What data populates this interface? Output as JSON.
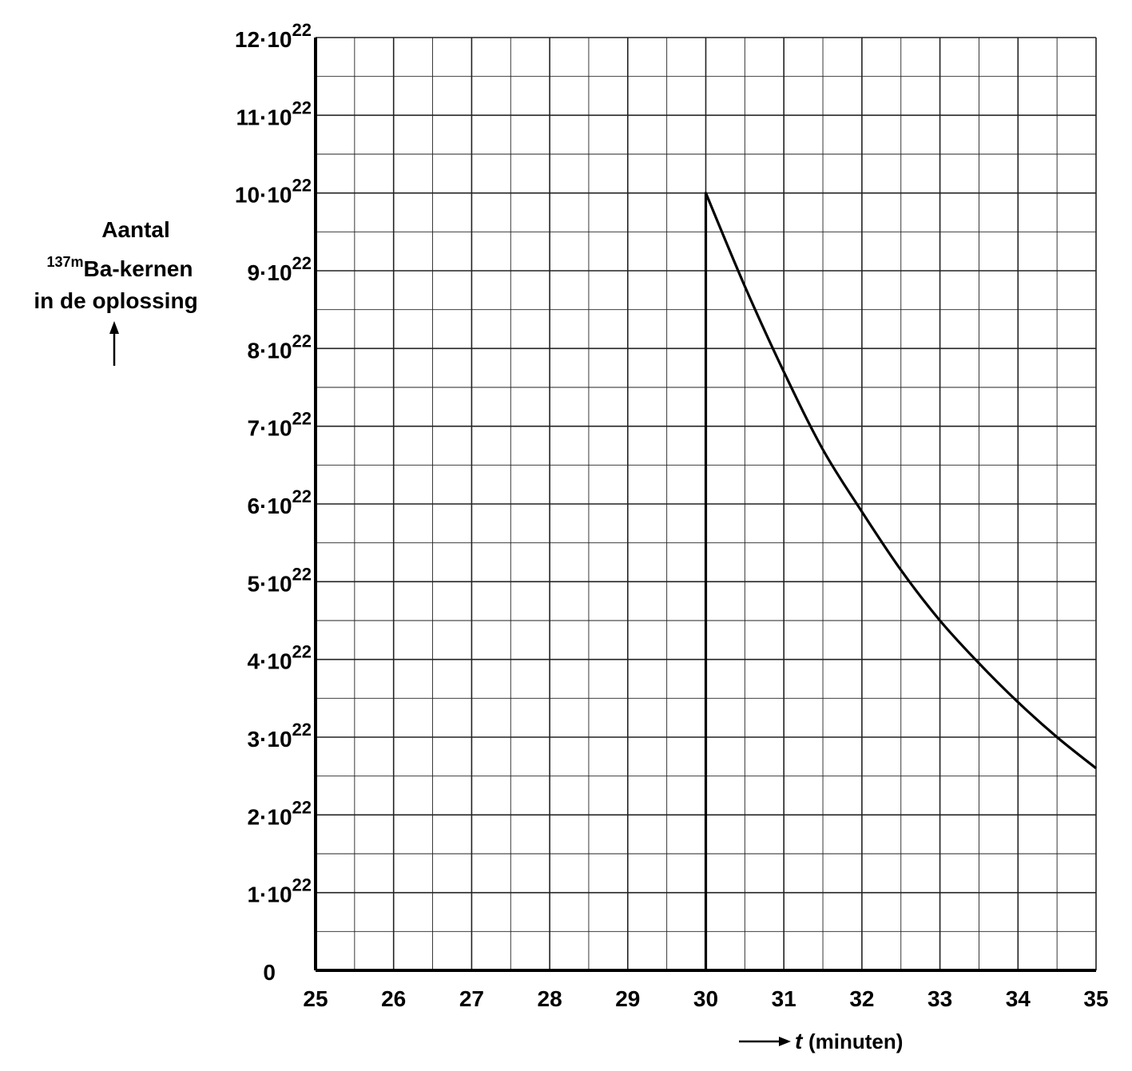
{
  "chart_data": {
    "type": "line",
    "ylabel_line1": "Aantal",
    "ylabel_sup": "137m",
    "ylabel_line2": "Ba-kernen",
    "ylabel_line3": "in de oplossing",
    "xlabel_var": "t",
    "xlabel_unit": "(minuten)",
    "xlim": [
      25,
      35
    ],
    "ylim": [
      0,
      120000000000000000000000
    ],
    "grid": true,
    "x_ticks": [
      "25",
      "26",
      "27",
      "28",
      "29",
      "30",
      "31",
      "32",
      "33",
      "34",
      "35"
    ],
    "y_ticks": [
      {
        "coef": "0",
        "exp": ""
      },
      {
        "coef": "1·10",
        "exp": "22"
      },
      {
        "coef": "2·10",
        "exp": "22"
      },
      {
        "coef": "3·10",
        "exp": "22"
      },
      {
        "coef": "4·10",
        "exp": "22"
      },
      {
        "coef": "5·10",
        "exp": "22"
      },
      {
        "coef": "6·10",
        "exp": "22"
      },
      {
        "coef": "7·10",
        "exp": "22"
      },
      {
        "coef": "8·10",
        "exp": "22"
      },
      {
        "coef": "9·10",
        "exp": "22"
      },
      {
        "coef": "10·10",
        "exp": "22"
      },
      {
        "coef": "11·10",
        "exp": "22"
      },
      {
        "coef": "12·10",
        "exp": "22"
      }
    ],
    "series": [
      {
        "x": [
          30,
          30,
          30.5,
          31,
          31.5,
          32,
          32.5,
          33,
          33.5,
          34,
          34.5,
          35
        ],
        "y_e22": [
          0,
          10,
          8.8,
          7.7,
          6.7,
          5.9,
          5.15,
          4.5,
          3.95,
          3.45,
          3.0,
          2.6
        ]
      }
    ]
  }
}
